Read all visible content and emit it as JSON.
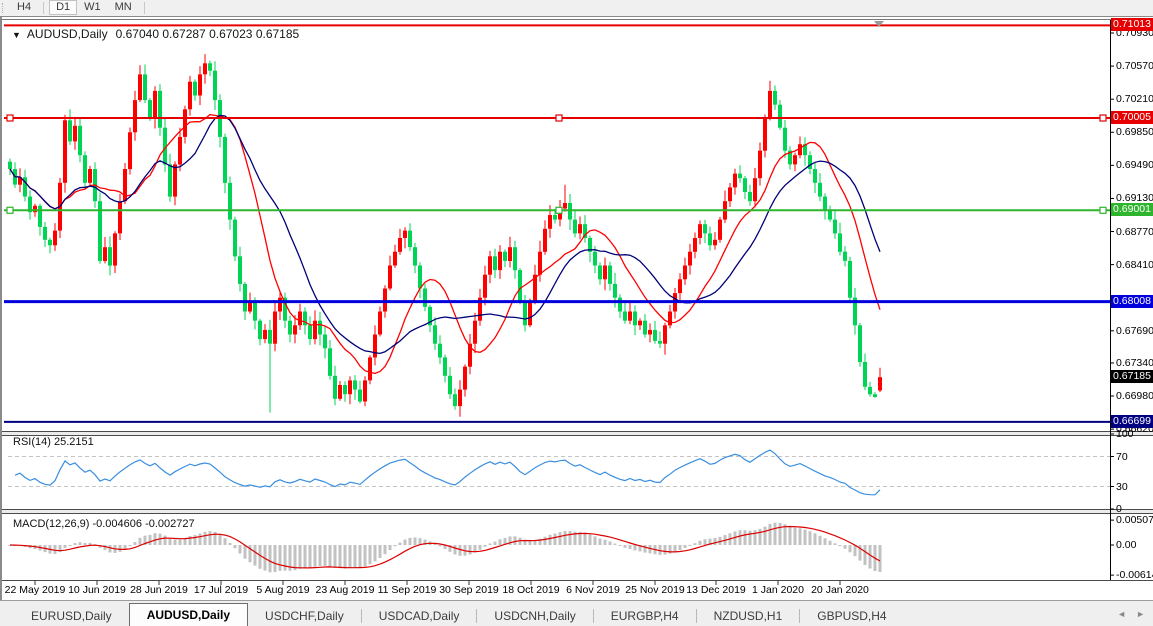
{
  "toolbar": {
    "timeframes": [
      {
        "label": "H4",
        "active": false
      },
      {
        "label": "D1",
        "active": true
      },
      {
        "label": "W1",
        "active": false
      },
      {
        "label": "MN",
        "active": false
      }
    ]
  },
  "chart_header": {
    "dropdown_icon": "▼",
    "symbol": "AUDUSD,Daily",
    "open": "0.67040",
    "high": "0.67287",
    "low": "0.67023",
    "close": "0.67185"
  },
  "price_scale": {
    "labels": [
      "0.70930",
      "0.70570",
      "0.70210",
      "0.69850",
      "0.69490",
      "0.69130",
      "0.68770",
      "0.68410",
      "0.67690",
      "0.67340",
      "0.66980",
      "0.66620"
    ],
    "current_badge": {
      "text": "0.67185",
      "bg": "#000000",
      "price": 0.67185
    }
  },
  "indicators": {
    "rsi": {
      "label": "RSI(14) 25.2151",
      "period": 14,
      "value": 25.2151,
      "line_color": "#3a8ee0",
      "levels": [
        {
          "value": 100,
          "label": "100",
          "dashed": false
        },
        {
          "value": 70,
          "label": "70",
          "dashed": true
        },
        {
          "value": 30,
          "label": "30",
          "dashed": true
        },
        {
          "value": 0,
          "label": "0",
          "dashed": false
        }
      ]
    },
    "macd": {
      "label": "MACD(12,26,9) -0.004606 -0.002727",
      "fast": 12,
      "slow": 26,
      "signal": 9,
      "main_value": -0.004606,
      "signal_value": -0.002727,
      "hist_color": "#c2c2c2",
      "signal_color": "#dd0000",
      "scale_labels": [
        {
          "value": 0.005076,
          "label": "0.005076"
        },
        {
          "value": 0,
          "label": "0.00"
        },
        {
          "value": -0.006148,
          "label": "-0.006148"
        }
      ]
    }
  },
  "tabs": {
    "items": [
      {
        "label": "EURUSD,Daily",
        "active": false
      },
      {
        "label": "AUDUSD,Daily",
        "active": true
      },
      {
        "label": "USDCHF,Daily",
        "active": false
      },
      {
        "label": "USDCAD,Daily",
        "active": false
      },
      {
        "label": "USDCNH,Daily",
        "active": false
      },
      {
        "label": "EURGBP,H4",
        "active": false
      },
      {
        "label": "NZDUSD,H1",
        "active": false
      },
      {
        "label": "GBPUSD,H4",
        "active": false
      }
    ],
    "scroll_left_icon": "◄",
    "scroll_right_icon": "►"
  },
  "chart_data": {
    "type": "candlestick",
    "symbol": "AUDUSD",
    "timeframe": "Daily",
    "up_color": "#ff0000",
    "down_color": "#00d455",
    "last_candle": {
      "open": 0.6704,
      "high": 0.67287,
      "low": 0.67023,
      "close": 0.67185
    },
    "moving_averages": [
      {
        "period": 12,
        "color": "#ff0000"
      },
      {
        "period": 20,
        "color": "#000078"
      }
    ],
    "hlines": [
      {
        "price": 0.71013,
        "label": "0.71013",
        "color": "#e60000",
        "width": 2,
        "handles": false
      },
      {
        "price": 0.70005,
        "label": "0.70005",
        "color": "#e60000",
        "width": 2,
        "handles": true
      },
      {
        "price": 0.69001,
        "label": "0.69001",
        "color": "#2eb52e",
        "width": 2,
        "handles": true
      },
      {
        "price": 0.68008,
        "label": "0.68008",
        "color": "#0000dc",
        "width": 3,
        "handles": false
      },
      {
        "price": 0.66699,
        "label": "0.66699",
        "color": "#000080",
        "width": 2,
        "handles": false
      }
    ],
    "price_axis": {
      "top_label": 0.7093,
      "bottom_label": 0.6662,
      "step": 0.0036
    },
    "x_labels": [
      "22 May 2019",
      "10 Jun 2019",
      "28 Jun 2019",
      "17 Jul 2019",
      "5 Aug 2019",
      "23 Aug 2019",
      "11 Sep 2019",
      "30 Sep 2019",
      "18 Oct 2019",
      "6 Nov 2019",
      "25 Nov 2019",
      "13 Dec 2019",
      "1 Jan 2020",
      "20 Jan 2020"
    ],
    "closes": [
      0.6945,
      0.6928,
      0.6936,
      0.6915,
      0.6898,
      0.6905,
      0.6882,
      0.6868,
      0.6862,
      0.6878,
      0.693,
      0.6998,
      0.6975,
      0.6992,
      0.696,
      0.693,
      0.6945,
      0.691,
      0.6845,
      0.686,
      0.684,
      0.6875,
      0.691,
      0.6945,
      0.6985,
      0.702,
      0.7048,
      0.702,
      0.7,
      0.703,
      0.699,
      0.695,
      0.6915,
      0.695,
      0.698,
      0.701,
      0.704,
      0.7025,
      0.7048,
      0.706,
      0.7052,
      0.702,
      0.698,
      0.693,
      0.689,
      0.685,
      0.682,
      0.679,
      0.68,
      0.678,
      0.676,
      0.677,
      0.6755,
      0.679,
      0.6805,
      0.678,
      0.6765,
      0.6775,
      0.679,
      0.6775,
      0.676,
      0.678,
      0.6765,
      0.675,
      0.672,
      0.6695,
      0.671,
      0.67,
      0.6715,
      0.6705,
      0.6692,
      0.6715,
      0.674,
      0.6765,
      0.679,
      0.6815,
      0.684,
      0.6855,
      0.687,
      0.6878,
      0.686,
      0.684,
      0.6815,
      0.6795,
      0.6775,
      0.6755,
      0.674,
      0.672,
      0.67,
      0.6687,
      0.6705,
      0.673,
      0.6755,
      0.678,
      0.6805,
      0.683,
      0.685,
      0.6835,
      0.6855,
      0.6845,
      0.686,
      0.6835,
      0.68,
      0.6775,
      0.68,
      0.683,
      0.6855,
      0.688,
      0.6895,
      0.689,
      0.6902,
      0.6908,
      0.689,
      0.6875,
      0.6885,
      0.687,
      0.6855,
      0.684,
      0.6825,
      0.684,
      0.682,
      0.6805,
      0.679,
      0.678,
      0.679,
      0.6775,
      0.678,
      0.6765,
      0.677,
      0.6758,
      0.6755,
      0.6775,
      0.679,
      0.681,
      0.6825,
      0.684,
      0.6855,
      0.687,
      0.6885,
      0.6875,
      0.6862,
      0.6868,
      0.689,
      0.691,
      0.6925,
      0.694,
      0.6935,
      0.692,
      0.691,
      0.6935,
      0.6965,
      0.7,
      0.703,
      0.7015,
      0.699,
      0.6965,
      0.695,
      0.696,
      0.6972,
      0.696,
      0.6945,
      0.693,
      0.6915,
      0.69,
      0.689,
      0.6875,
      0.6855,
      0.6845,
      0.6805,
      0.6775,
      0.6735,
      0.6708,
      0.67,
      0.6697,
      0.67185
    ],
    "wick_overrides": {
      "11": {
        "h": 0.7004
      },
      "26": {
        "h": 0.7058
      },
      "39": {
        "h": 0.707
      },
      "40": {
        "h": 0.7063
      },
      "52": {
        "l": 0.668
      },
      "65": {
        "l": 0.6688
      },
      "70": {
        "l": 0.669
      },
      "89": {
        "l": 0.6683
      },
      "111": {
        "h": 0.6928
      },
      "152": {
        "h": 0.7041
      },
      "173": {
        "l": 0.6696
      }
    }
  }
}
